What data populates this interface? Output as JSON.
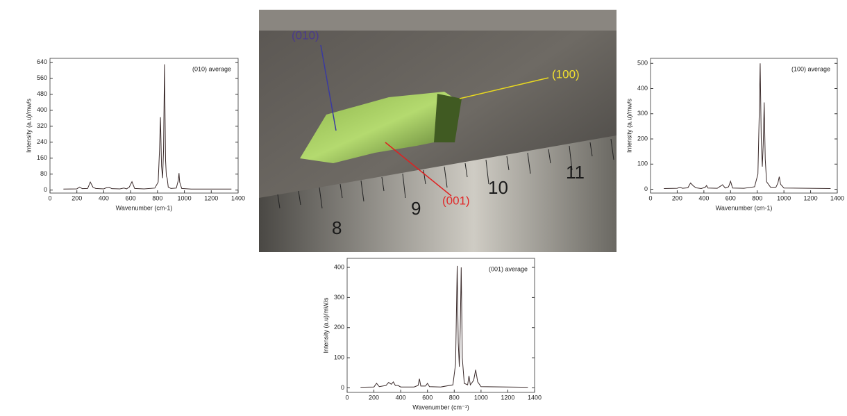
{
  "chart_data": [
    {
      "type": "line",
      "title": "(010) average",
      "x_label": "Wavenumber (cm-1)",
      "y_label": "Intensity (a.u)/mw/s",
      "color": "#3a2a2a",
      "x": [
        100,
        200,
        220,
        240,
        280,
        300,
        320,
        340,
        400,
        420,
        440,
        460,
        520,
        550,
        570,
        590,
        610,
        630,
        700,
        780,
        805,
        815,
        822,
        830,
        838,
        845,
        852,
        860,
        866,
        872,
        880,
        900,
        940,
        955,
        960,
        965,
        980,
        1050,
        1350
      ],
      "values": [
        5,
        6,
        15,
        7,
        8,
        40,
        14,
        8,
        6,
        12,
        14,
        7,
        6,
        10,
        6,
        15,
        42,
        8,
        6,
        10,
        40,
        200,
        365,
        120,
        60,
        200,
        630,
        150,
        70,
        60,
        15,
        8,
        10,
        50,
        85,
        40,
        8,
        5,
        5
      ],
      "xlim": [
        0,
        1400
      ],
      "ylim": [
        -15,
        660
      ],
      "xticks": [
        0,
        200,
        400,
        600,
        800,
        1000,
        1200,
        1400
      ],
      "yticks": [
        0,
        80,
        160,
        240,
        320,
        400,
        480,
        560,
        640
      ]
    },
    {
      "type": "line",
      "title": "(100) average",
      "x_label": "Wavenumber (cm-1)",
      "y_label": "Intensity (a.u)/mw/s",
      "color": "#3a2a2a",
      "x": [
        100,
        200,
        220,
        240,
        280,
        300,
        320,
        340,
        380,
        410,
        420,
        430,
        500,
        540,
        560,
        585,
        600,
        615,
        700,
        780,
        805,
        815,
        822,
        830,
        838,
        845,
        852,
        860,
        870,
        900,
        940,
        955,
        965,
        975,
        1000,
        1350
      ],
      "values": [
        3,
        4,
        8,
        4,
        6,
        25,
        14,
        6,
        3,
        8,
        15,
        5,
        4,
        18,
        5,
        10,
        32,
        5,
        4,
        10,
        60,
        300,
        500,
        200,
        90,
        180,
        345,
        120,
        30,
        8,
        8,
        25,
        50,
        20,
        5,
        3
      ],
      "xlim": [
        0,
        1400
      ],
      "ylim": [
        -15,
        520
      ],
      "xticks": [
        0,
        200,
        400,
        600,
        800,
        1000,
        1200,
        1400
      ],
      "yticks": [
        0,
        100,
        200,
        300,
        400,
        500
      ]
    },
    {
      "type": "line",
      "title": "(001) average",
      "x_label": "Wavenumber (cm⁻¹)",
      "y_label": "Intensity (a.u)/mW/s",
      "color": "#3a2a2a",
      "x": [
        100,
        200,
        220,
        240,
        290,
        310,
        330,
        345,
        360,
        380,
        400,
        500,
        530,
        540,
        550,
        585,
        600,
        615,
        700,
        790,
        810,
        822,
        830,
        838,
        845,
        852,
        860,
        875,
        900,
        910,
        920,
        945,
        960,
        975,
        1000,
        1350
      ],
      "values": [
        2,
        3,
        15,
        4,
        8,
        18,
        12,
        20,
        8,
        8,
        3,
        3,
        8,
        30,
        6,
        6,
        15,
        4,
        3,
        10,
        80,
        405,
        150,
        70,
        200,
        400,
        100,
        15,
        10,
        40,
        10,
        25,
        60,
        20,
        4,
        2
      ],
      "xlim": [
        0,
        1400
      ],
      "ylim": [
        -15,
        430
      ],
      "xticks": [
        0,
        200,
        400,
        600,
        800,
        1000,
        1200,
        1400
      ],
      "yticks": [
        0,
        100,
        200,
        300,
        400
      ]
    }
  ],
  "photo": {
    "labels": [
      "(010)",
      "(100)",
      "(001)"
    ],
    "ruler_labels": [
      "8",
      "9",
      "10",
      "11"
    ]
  }
}
